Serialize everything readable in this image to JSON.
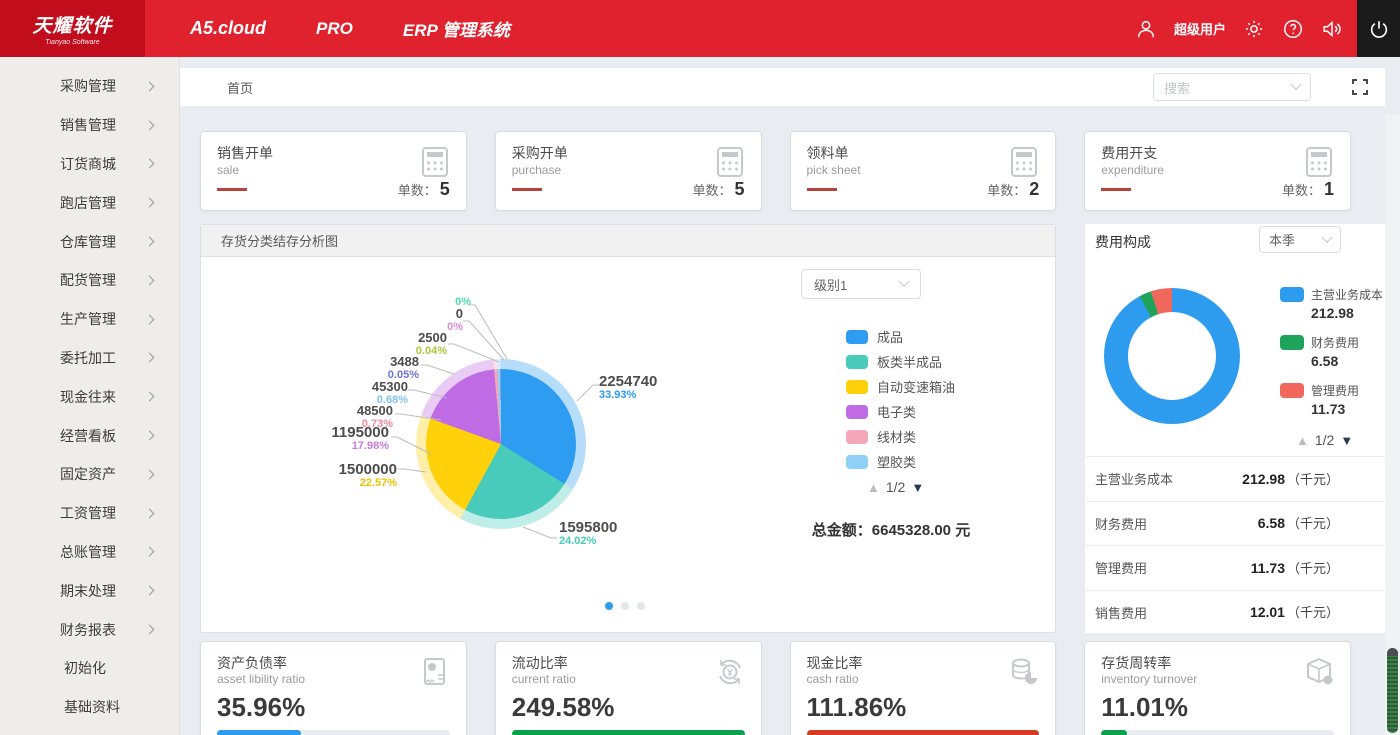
{
  "colors": {
    "header_red": "#e0222f",
    "logo_red": "#c20d1d",
    "accent_blue": "#2d9cef"
  },
  "header": {
    "logo_title": "天耀软件",
    "logo_subtitle": "Tianyao Software",
    "product": "A5.cloud",
    "edition": "PRO",
    "system_name": "ERP 管理系统",
    "user_name": "超级用户"
  },
  "sidebar": {
    "items": [
      {
        "label": "采购管理",
        "has_children": true
      },
      {
        "label": "销售管理",
        "has_children": true
      },
      {
        "label": "订货商城",
        "has_children": true
      },
      {
        "label": "跑店管理",
        "has_children": true
      },
      {
        "label": "仓库管理",
        "has_children": true
      },
      {
        "label": "配货管理",
        "has_children": true
      },
      {
        "label": "生产管理",
        "has_children": true
      },
      {
        "label": "委托加工",
        "has_children": true
      },
      {
        "label": "现金往来",
        "has_children": true
      },
      {
        "label": "经营看板",
        "has_children": true
      },
      {
        "label": "固定资产",
        "has_children": true
      },
      {
        "label": "工资管理",
        "has_children": true
      },
      {
        "label": "总账管理",
        "has_children": true
      },
      {
        "label": "期末处理",
        "has_children": true
      },
      {
        "label": "财务报表",
        "has_children": true
      },
      {
        "label": "初始化",
        "has_children": false
      },
      {
        "label": "基础资料",
        "has_children": false
      }
    ]
  },
  "breadcrumb": {
    "home": "首页",
    "search_placeholder": "搜索"
  },
  "stat_cards": [
    {
      "title": "销售开单",
      "subtitle": "sale",
      "count_label": "单数：",
      "count": "5"
    },
    {
      "title": "采购开单",
      "subtitle": "purchase",
      "count_label": "单数：",
      "count": "5"
    },
    {
      "title": "领料单",
      "subtitle": "pick sheet",
      "count_label": "单数：",
      "count": "2"
    },
    {
      "title": "费用开支",
      "subtitle": "expenditure",
      "count_label": "单数：",
      "count": "1"
    }
  ],
  "inventory_panel": {
    "title": "存货分类结存分析图",
    "level_select": "级别1",
    "pager": "1/2",
    "total": "总金额：6645328.00 元"
  },
  "expense_panel": {
    "title": "费用构成",
    "period_select": "本季",
    "pager": "1/2",
    "rows": [
      {
        "label": "主营业务成本",
        "value": "212.98",
        "unit": "（千元）"
      },
      {
        "label": "财务费用",
        "value": "6.58",
        "unit": "（千元）"
      },
      {
        "label": "管理费用",
        "value": "11.73",
        "unit": "（千元）"
      },
      {
        "label": "销售费用",
        "value": "12.01",
        "unit": "（千元）"
      }
    ]
  },
  "ratio_cards": [
    {
      "title": "资产负债率",
      "subtitle": "asset libility ratio",
      "value": "35.96%",
      "bar_color": "#2d9cef",
      "bar_width": "36%"
    },
    {
      "title": "流动比率",
      "subtitle": "current ratio",
      "value": "249.58%",
      "bar_color": "#0aa14d",
      "bar_width": "100%"
    },
    {
      "title": "现金比率",
      "subtitle": "cash ratio",
      "value": "111.86%",
      "bar_color": "#d63a21",
      "bar_width": "100%"
    },
    {
      "title": "存货周转率",
      "subtitle": "inventory turnover",
      "value": "11.01%",
      "bar_color": "#0aa14d",
      "bar_width": "11%"
    }
  ],
  "chart_data": [
    {
      "type": "pie",
      "title": "存货分类结存分析图",
      "total_label": "总金额：6645328.00 元",
      "legend_position": "right",
      "legend_page": "1/2",
      "slices": [
        {
          "name": "成品",
          "value": 2254740,
          "value_label": "2254740",
          "pct": "33.93%",
          "color": "#2e9df1",
          "pct_color": "#2d9cf0"
        },
        {
          "name": "板类半成品",
          "value": 1595800,
          "value_label": "1595800",
          "pct": "24.02%",
          "color": "#49cbbb",
          "pct_color": "#45cbb6"
        },
        {
          "name": "自动变速箱油",
          "value": 1500000,
          "value_label": "1500000",
          "pct": "22.57%",
          "color": "#ffd10a",
          "pct_color": "#f0c000"
        },
        {
          "name": "电子类",
          "value": 1195000,
          "value_label": "1195000",
          "pct": "17.98%",
          "color": "#bf6ce4",
          "pct_color": "#c77ce0"
        },
        {
          "name": "线材类",
          "value": 48500,
          "value_label": "48500",
          "pct": "0.73%",
          "color": "#f4a7b9",
          "pct_color": "#f08a9b"
        },
        {
          "name": "塑胶类",
          "value": 45300,
          "value_label": "45300",
          "pct": "0.68%",
          "color": "#8fd0f8",
          "pct_color": "#7ec4f2"
        },
        {
          "name": "",
          "value": 3488,
          "value_label": "3488",
          "pct": "0.05%",
          "color": "#6b74d8",
          "pct_color": "#6b74d8"
        },
        {
          "name": "",
          "value": 2500,
          "value_label": "2500",
          "pct": "0.04%",
          "color": "#a8c93a",
          "pct_color": "#a8c93a"
        },
        {
          "name": "",
          "value": 0,
          "value_label": "0",
          "pct": "0%",
          "color": "#e08ad6",
          "pct_color": "#e08ad6"
        },
        {
          "name": "",
          "value": 0,
          "value_label": "",
          "pct": "0%",
          "color": "#4be0b0",
          "pct_color": "#4be0b0"
        }
      ]
    },
    {
      "type": "donut",
      "title": "费用构成",
      "legend_page": "1/2",
      "slices": [
        {
          "name": "主营业务成本",
          "value": 212.98,
          "value_label": "212.98",
          "color": "#2d9cef"
        },
        {
          "name": "财务费用",
          "value": 6.58,
          "value_label": "6.58",
          "color": "#1ea35a"
        },
        {
          "name": "管理费用",
          "value": 11.73,
          "value_label": "11.73",
          "color": "#f0685c"
        }
      ]
    }
  ]
}
